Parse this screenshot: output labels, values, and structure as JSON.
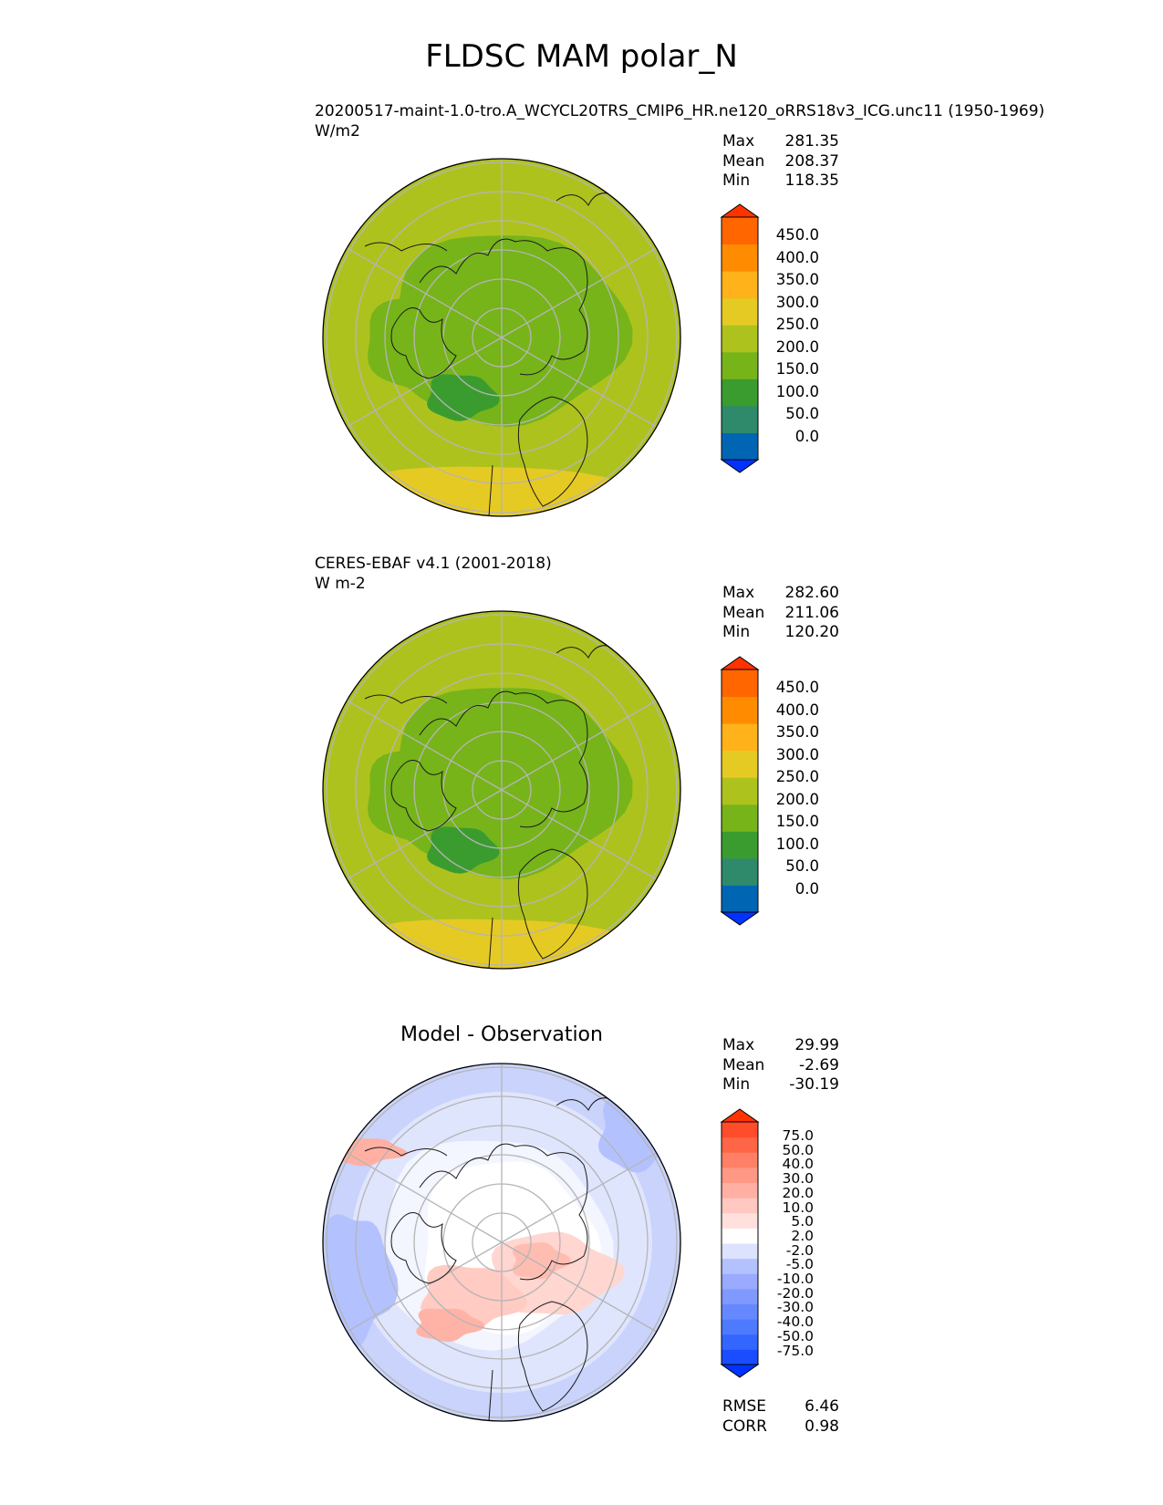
{
  "page": {
    "title": "FLDSC MAM polar_N"
  },
  "panels": [
    {
      "id": "model",
      "title_line1": "20200517-maint-1.0-tro.A_WCYCL20TRS_CMIP6_HR.ne120_oRRS18v3_ICG.unc11 (1950-1969)",
      "title_line2": "W/m2",
      "stats": [
        {
          "label": "Max",
          "value": "281.35"
        },
        {
          "label": "Mean",
          "value": "208.37"
        },
        {
          "label": "Min",
          "value": "118.35"
        }
      ],
      "colorbar": {
        "labels": [
          "450.0",
          "400.0",
          "350.0",
          "300.0",
          "250.0",
          "200.0",
          "150.0",
          "100.0",
          "50.0",
          "0.0"
        ],
        "colors": [
          "#0033ff",
          "#0066b3",
          "#2e8a6b",
          "#3a9c2e",
          "#76b41a",
          "#aec21e",
          "#e6ca24",
          "#ffb21a",
          "#ff8c00",
          "#ff6600",
          "#ff3300"
        ]
      }
    },
    {
      "id": "observation",
      "title_line1": "CERES-EBAF v4.1 (2001-2018)",
      "title_line2": "W m-2",
      "stats": [
        {
          "label": "Max",
          "value": "282.60"
        },
        {
          "label": "Mean",
          "value": "211.06"
        },
        {
          "label": "Min",
          "value": "120.20"
        }
      ],
      "colorbar": {
        "labels": [
          "450.0",
          "400.0",
          "350.0",
          "300.0",
          "250.0",
          "200.0",
          "150.0",
          "100.0",
          "50.0",
          "0.0"
        ],
        "colors": [
          "#0033ff",
          "#0066b3",
          "#2e8a6b",
          "#3a9c2e",
          "#76b41a",
          "#aec21e",
          "#e6ca24",
          "#ffb21a",
          "#ff8c00",
          "#ff6600",
          "#ff3300"
        ]
      }
    },
    {
      "id": "difference",
      "title_center": "Model - Observation",
      "stats": [
        {
          "label": "Max",
          "value": "29.99"
        },
        {
          "label": "Mean",
          "value": "-2.69"
        },
        {
          "label": "Min",
          "value": "-30.19"
        }
      ],
      "metrics": [
        {
          "label": "RMSE",
          "value": "6.46"
        },
        {
          "label": "CORR",
          "value": "0.98"
        }
      ],
      "colorbar": {
        "labels": [
          "75.0",
          "50.0",
          "40.0",
          "30.0",
          "20.0",
          "10.0",
          "5.0",
          "2.0",
          "-2.0",
          "-5.0",
          "-10.0",
          "-20.0",
          "-30.0",
          "-40.0",
          "-50.0",
          "-75.0"
        ],
        "colors": [
          "#0033ff",
          "#1a4dff",
          "#3366ff",
          "#4d7aff",
          "#6688ff",
          "#8099ff",
          "#99aaff",
          "#b3c2ff",
          "#dde3ff",
          "#ffffff",
          "#ffe0dd",
          "#ffc8c0",
          "#ffb0a3",
          "#ff9884",
          "#ff8066",
          "#ff6647",
          "#ff4d2b",
          "#ff3300"
        ]
      }
    }
  ],
  "chart_data": [
    {
      "type": "heatmap",
      "title": "20200517-maint-1.0-tro.A_WCYCL20TRS_CMIP6_HR.ne120_oRRS18v3_ICG.unc11 (1950-1969)",
      "projection": "north polar stereographic",
      "units": "W/m2",
      "levels": [
        0,
        50,
        100,
        150,
        200,
        250,
        300,
        350,
        400,
        450
      ],
      "extend": "both",
      "summary": {
        "max": 281.35,
        "mean": 208.37,
        "min": 118.35
      },
      "grid": true
    },
    {
      "type": "heatmap",
      "title": "CERES-EBAF v4.1 (2001-2018)",
      "projection": "north polar stereographic",
      "units": "W m-2",
      "levels": [
        0,
        50,
        100,
        150,
        200,
        250,
        300,
        350,
        400,
        450
      ],
      "extend": "both",
      "summary": {
        "max": 282.6,
        "mean": 211.06,
        "min": 120.2
      },
      "grid": true
    },
    {
      "type": "heatmap",
      "title": "Model - Observation",
      "projection": "north polar stereographic",
      "levels": [
        -75,
        -50,
        -40,
        -30,
        -20,
        -10,
        -5,
        -2,
        2,
        5,
        10,
        20,
        30,
        40,
        50,
        75
      ],
      "extend": "both",
      "summary": {
        "max": 29.99,
        "mean": -2.69,
        "min": -30.19,
        "rmse": 6.46,
        "corr": 0.98
      },
      "grid": true
    }
  ]
}
